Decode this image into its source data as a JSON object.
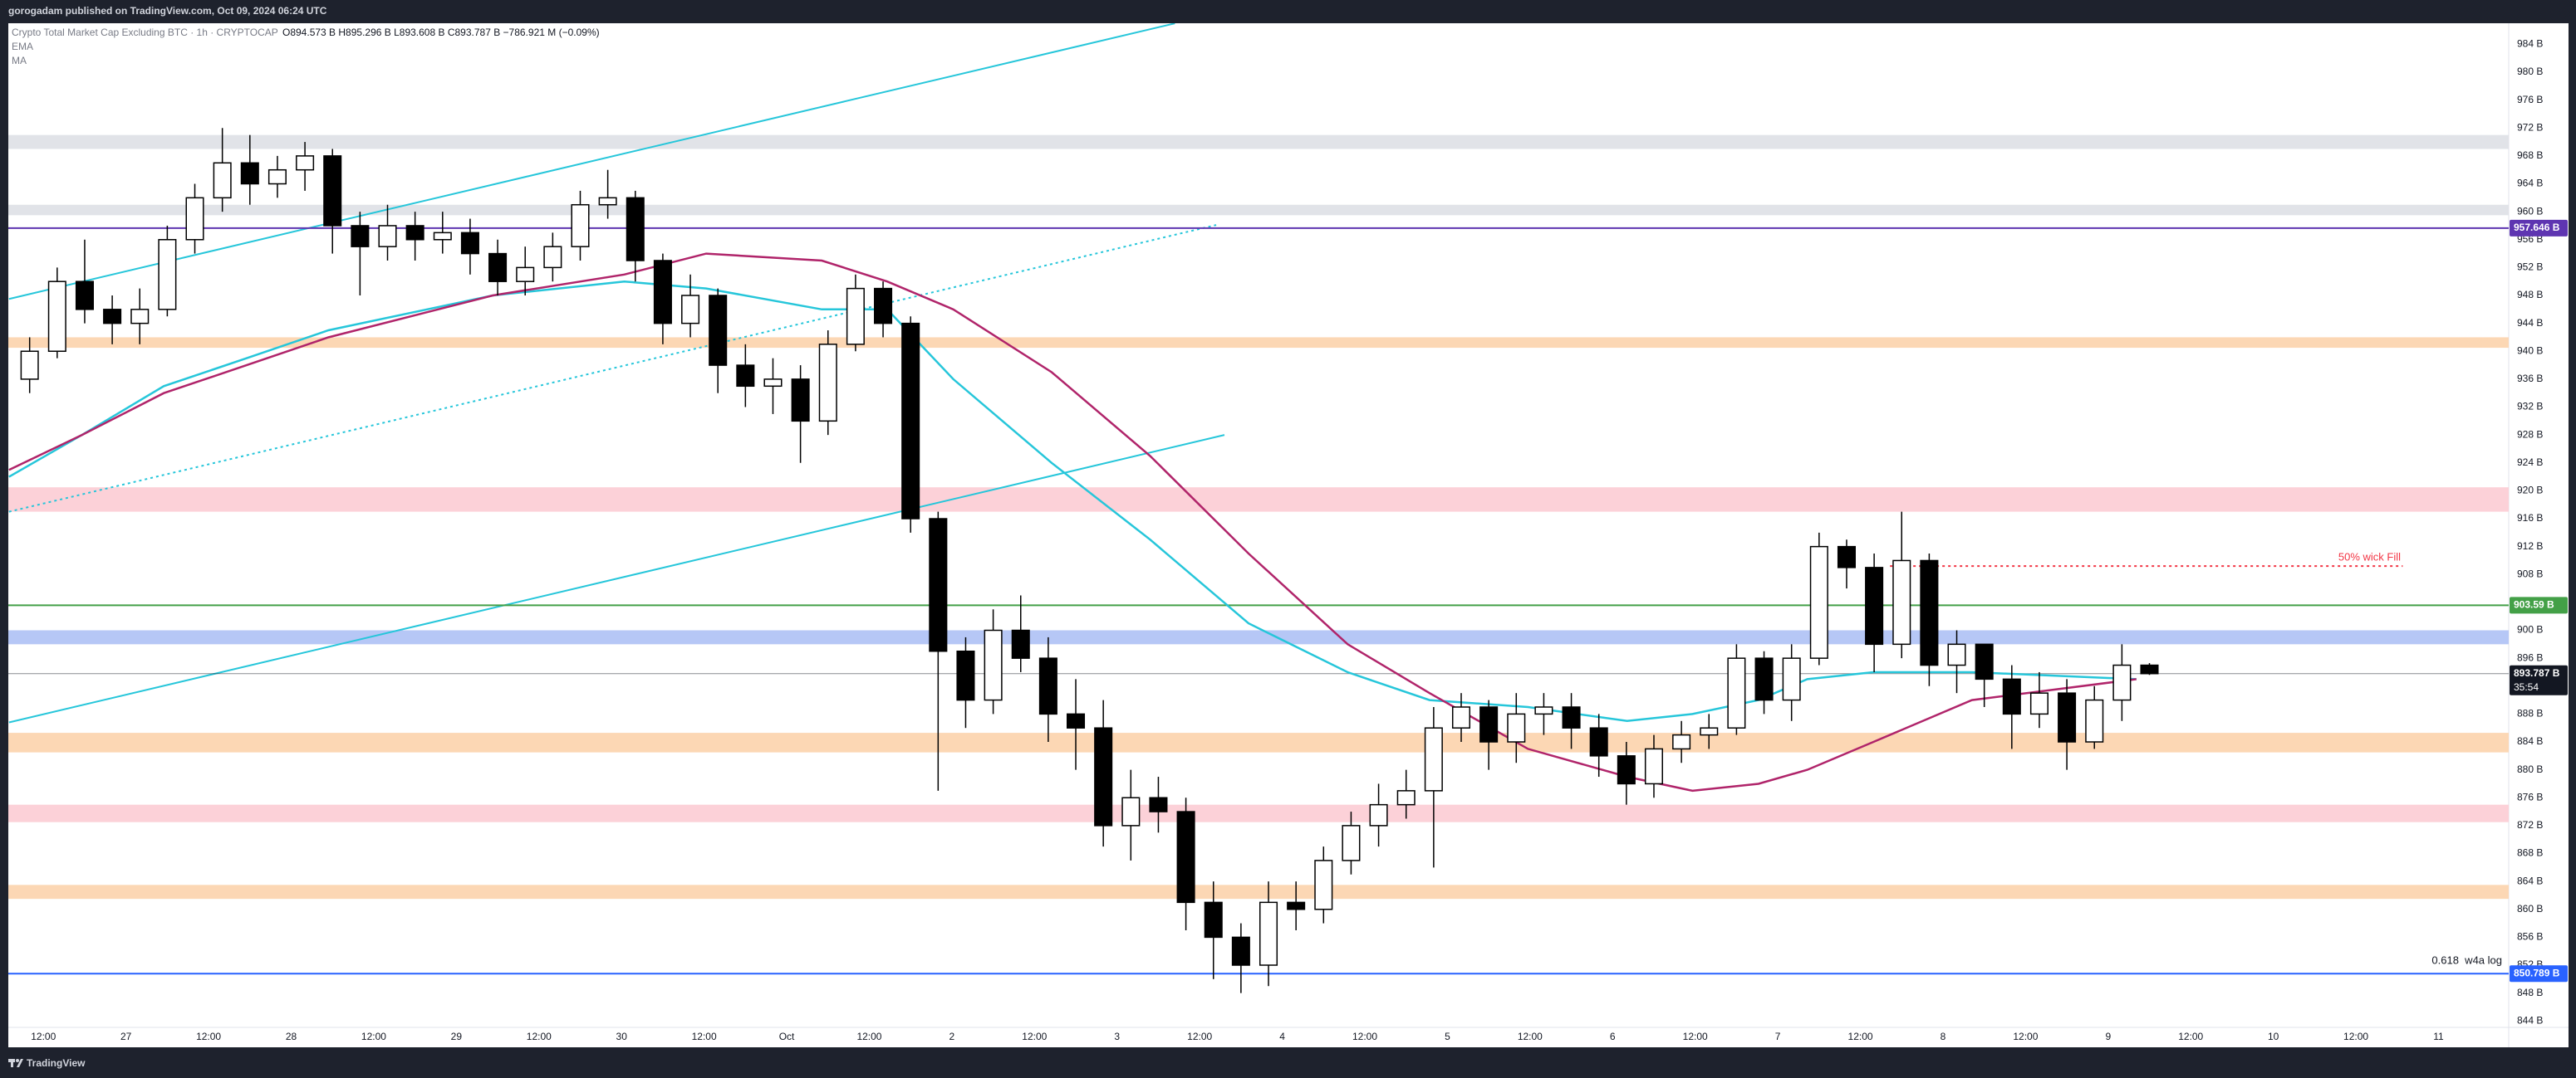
{
  "header": {
    "publisher": "gorogadam published on TradingView.com, Oct 09, 2024 06:24 UTC",
    "footer": "TradingView"
  },
  "chart_data": {
    "type": "candlestick",
    "title": "Crypto Total Market Cap Excluding BTC · 1h · CRYPTOCAP",
    "ohlc_text": "O894.573 B  H895.296 B  L893.608 B  C893.787 B  −786.921 M (−0.09%)",
    "countdown": "35:54",
    "grid": false,
    "xlim": [
      6.9,
      370.2
    ],
    "ylim": [
      843.08,
      987.02
    ],
    "xticks": [
      {
        "value": 12,
        "label": "12:00"
      },
      {
        "value": 24,
        "label": "27"
      },
      {
        "value": 36,
        "label": "12:00"
      },
      {
        "value": 48,
        "label": "28"
      },
      {
        "value": 60,
        "label": "12:00"
      },
      {
        "value": 72,
        "label": "29"
      },
      {
        "value": 84,
        "label": "12:00"
      },
      {
        "value": 96,
        "label": "30"
      },
      {
        "value": 108,
        "label": "12:00"
      },
      {
        "value": 120,
        "label": "Oct"
      },
      {
        "value": 132,
        "label": "12:00"
      },
      {
        "value": 144,
        "label": "2"
      },
      {
        "value": 156,
        "label": "12:00"
      },
      {
        "value": 168,
        "label": "3"
      },
      {
        "value": 180,
        "label": "12:00"
      },
      {
        "value": 192,
        "label": "4"
      },
      {
        "value": 204,
        "label": "12:00"
      },
      {
        "value": 216,
        "label": "5"
      },
      {
        "value": 228,
        "label": "12:00"
      },
      {
        "value": 240,
        "label": "6"
      },
      {
        "value": 252,
        "label": "12:00"
      },
      {
        "value": 264,
        "label": "7"
      },
      {
        "value": 276,
        "label": "12:00"
      },
      {
        "value": 288,
        "label": "8"
      },
      {
        "value": 300,
        "label": "12:00"
      },
      {
        "value": 312,
        "label": "9"
      },
      {
        "value": 324,
        "label": "12:00"
      },
      {
        "value": 336,
        "label": "10"
      },
      {
        "value": 348,
        "label": "12:00"
      },
      {
        "value": 360,
        "label": "11"
      }
    ],
    "yticks": [
      {
        "value": 844,
        "label": "844 B"
      },
      {
        "value": 848,
        "label": "848 B"
      },
      {
        "value": 852,
        "label": "852 B"
      },
      {
        "value": 856,
        "label": "856 B"
      },
      {
        "value": 860,
        "label": "860 B"
      },
      {
        "value": 864,
        "label": "864 B"
      },
      {
        "value": 868,
        "label": "868 B"
      },
      {
        "value": 872,
        "label": "872 B"
      },
      {
        "value": 876,
        "label": "876 B"
      },
      {
        "value": 880,
        "label": "880 B"
      },
      {
        "value": 884,
        "label": "884 B"
      },
      {
        "value": 888,
        "label": "888 B"
      },
      {
        "value": 892,
        "label": "892 B"
      },
      {
        "value": 896,
        "label": "896 B"
      },
      {
        "value": 900,
        "label": "900 B"
      },
      {
        "value": 904,
        "label": "904 B"
      },
      {
        "value": 908,
        "label": "908 B"
      },
      {
        "value": 912,
        "label": "912 B"
      },
      {
        "value": 916,
        "label": "916 B"
      },
      {
        "value": 920,
        "label": "920 B"
      },
      {
        "value": 924,
        "label": "924 B"
      },
      {
        "value": 928,
        "label": "928 B"
      },
      {
        "value": 932,
        "label": "932 B"
      },
      {
        "value": 936,
        "label": "936 B"
      },
      {
        "value": 940,
        "label": "940 B"
      },
      {
        "value": 944,
        "label": "944 B"
      },
      {
        "value": 948,
        "label": "948 B"
      },
      {
        "value": 952,
        "label": "952 B"
      },
      {
        "value": 956,
        "label": "956 B"
      },
      {
        "value": 960,
        "label": "960 B"
      },
      {
        "value": 964,
        "label": "964 B"
      },
      {
        "value": 968,
        "label": "968 B"
      },
      {
        "value": 972,
        "label": "972 B"
      },
      {
        "value": 976,
        "label": "976 B"
      },
      {
        "value": 980,
        "label": "980 B"
      },
      {
        "value": 984,
        "label": "984 B"
      }
    ],
    "x": [
      10,
      14,
      18,
      22,
      26,
      30,
      34,
      38,
      42,
      46,
      50,
      54,
      58,
      62,
      66,
      70,
      74,
      78,
      82,
      86,
      90,
      94,
      98,
      102,
      106,
      110,
      114,
      118,
      122,
      126,
      130,
      134,
      138,
      142,
      146,
      150,
      154,
      158,
      162,
      166,
      170,
      174,
      178,
      182,
      186,
      190,
      194,
      198,
      202,
      206,
      210,
      214,
      218,
      222,
      226,
      230,
      234,
      238,
      242,
      246,
      250,
      254,
      258,
      262,
      266,
      270,
      274,
      278,
      282,
      286,
      290,
      294,
      298,
      302,
      306,
      310,
      314,
      318
    ],
    "open": [
      936,
      940,
      950,
      946,
      944,
      946,
      956,
      962,
      967,
      964,
      966,
      968,
      958,
      955,
      958,
      956,
      957,
      954,
      950,
      952,
      955,
      961,
      962,
      953,
      944,
      948,
      938,
      935,
      936,
      930,
      941,
      949,
      944,
      916,
      897,
      890,
      900,
      896,
      888,
      886,
      872,
      876,
      874,
      861,
      856,
      852,
      861,
      860,
      867,
      872,
      875,
      877,
      886,
      889,
      884,
      888,
      889,
      886,
      882,
      878,
      883,
      885,
      886,
      896,
      890,
      896,
      912,
      909,
      898,
      910,
      895,
      898,
      893,
      888,
      891,
      884,
      890,
      895
    ],
    "high": [
      942,
      952,
      956,
      948,
      949,
      958,
      964,
      972,
      971,
      968,
      970,
      969,
      960,
      961,
      960,
      960,
      959,
      956,
      955,
      957,
      963,
      966,
      963,
      954,
      951,
      949,
      941,
      939,
      938,
      943,
      951,
      950,
      945,
      917,
      899,
      903,
      905,
      899,
      893,
      890,
      880,
      879,
      876,
      864,
      858,
      864,
      864,
      869,
      874,
      878,
      880,
      889,
      891,
      890,
      891,
      891,
      891,
      888,
      884,
      885,
      887,
      888,
      898,
      897,
      898,
      914,
      913,
      911,
      917,
      911,
      900,
      898,
      895,
      894,
      893,
      892,
      898,
      895.296
    ],
    "low": [
      934,
      939,
      944,
      941,
      941,
      945,
      954,
      960,
      961,
      962,
      963,
      954,
      948,
      953,
      953,
      954,
      951,
      948,
      948,
      950,
      953,
      959,
      950,
      941,
      942,
      934,
      932,
      931,
      924,
      928,
      940,
      942,
      914,
      877,
      886,
      888,
      894,
      884,
      880,
      869,
      867,
      871,
      857,
      850,
      848,
      849,
      857,
      858,
      865,
      869,
      873,
      866,
      884,
      880,
      881,
      885,
      883,
      879,
      875,
      876,
      881,
      883,
      885,
      888,
      887,
      895,
      906,
      894,
      896,
      892,
      891,
      889,
      883,
      886,
      880,
      883,
      887,
      893.608
    ],
    "close": [
      940,
      950,
      946,
      944,
      946,
      956,
      962,
      967,
      964,
      966,
      968,
      958,
      955,
      958,
      956,
      957,
      954,
      950,
      952,
      955,
      961,
      962,
      953,
      944,
      948,
      938,
      935,
      936,
      930,
      941,
      949,
      944,
      916,
      897,
      890,
      900,
      896,
      888,
      886,
      872,
      876,
      874,
      861,
      856,
      852,
      861,
      860,
      867,
      872,
      875,
      877,
      886,
      889,
      884,
      888,
      889,
      886,
      882,
      878,
      883,
      885,
      886,
      896,
      890,
      896,
      912,
      909,
      898,
      910,
      895,
      898,
      893,
      888,
      891,
      884,
      890,
      895,
      893.787
    ],
    "series": [
      {
        "name": "EMA",
        "color": "#26c6da",
        "x": [
          7,
          17.6,
          29.5,
          41.5,
          53.4,
          77.3,
          96.4,
          108.3,
          125.1,
          134.6,
          144.2,
          158.5,
          172.8,
          187.1,
          201.5,
          213.4,
          227.7,
          242.1,
          251.6,
          261.2,
          268.3,
          277.9,
          292.2,
          316.1
        ],
        "values": [
          922,
          928,
          935,
          939,
          943,
          948,
          950,
          949,
          946,
          946,
          936,
          924,
          913,
          901,
          894,
          890,
          889,
          887,
          888,
          890,
          893,
          894,
          894,
          893
        ]
      },
      {
        "name": "MA",
        "color": "#b0246a",
        "x": [
          7,
          17.6,
          29.5,
          41.5,
          53.4,
          77.3,
          96.4,
          108.3,
          125.1,
          134.6,
          144.2,
          158.5,
          172.8,
          187.1,
          201.5,
          213.4,
          227.7,
          242.1,
          251.6,
          261.2,
          268.3,
          277.9,
          292.2,
          316.1
        ],
        "values": [
          923,
          928,
          934,
          938,
          942,
          948,
          951,
          954,
          953,
          950,
          946,
          937,
          925,
          911,
          898,
          891,
          883,
          879,
          877,
          878,
          880,
          884,
          890,
          893
        ]
      }
    ],
    "zones": [
      {
        "range": [
          969,
          971
        ],
        "color": "#e1e3e8"
      },
      {
        "range": [
          959.5,
          961
        ],
        "color": "#e1e3e8"
      },
      {
        "range": [
          940.5,
          942
        ],
        "color": "#fcd7b4"
      },
      {
        "range": [
          917,
          920.5
        ],
        "color": "#fcd1d8"
      },
      {
        "range": [
          898,
          900
        ],
        "color": "#b6c7f6"
      },
      {
        "range": [
          882.5,
          885.3
        ],
        "color": "#fcd7b4"
      },
      {
        "range": [
          872.5,
          875
        ],
        "color": "#fcd1d8"
      },
      {
        "range": [
          861.5,
          863.5
        ],
        "color": "#fcd7b4"
      }
    ],
    "levels": [
      {
        "value": 957.646,
        "label": "957.646 B",
        "color": "#5e35b1"
      },
      {
        "value": 903.59,
        "label": "903.59 B",
        "color": "#43a047"
      },
      {
        "value": 893.787,
        "label": "893.787 B",
        "color": "#131722"
      },
      {
        "value": 850.789,
        "label": "850.789 B",
        "color": "#2962ff"
      }
    ],
    "trendlines": [
      {
        "x": [
          7,
          176.4
        ],
        "y": [
          947.5,
          987
        ],
        "color": "#26c6da",
        "style": "solid"
      },
      {
        "x": [
          7,
          183.6
        ],
        "y": [
          886.8,
          928
        ],
        "color": "#26c6da",
        "style": "solid"
      },
      {
        "x": [
          7,
          182.4
        ],
        "y": [
          917,
          958.1
        ],
        "color": "#26c6da",
        "style": "dotted"
      },
      {
        "x": [
          280.3,
          354.8
        ],
        "y": [
          909.2,
          909.2
        ],
        "color": "#f23645",
        "style": "dotted"
      }
    ],
    "annotations": [
      "50% wick Fill",
      "0.618  w4a log"
    ]
  }
}
